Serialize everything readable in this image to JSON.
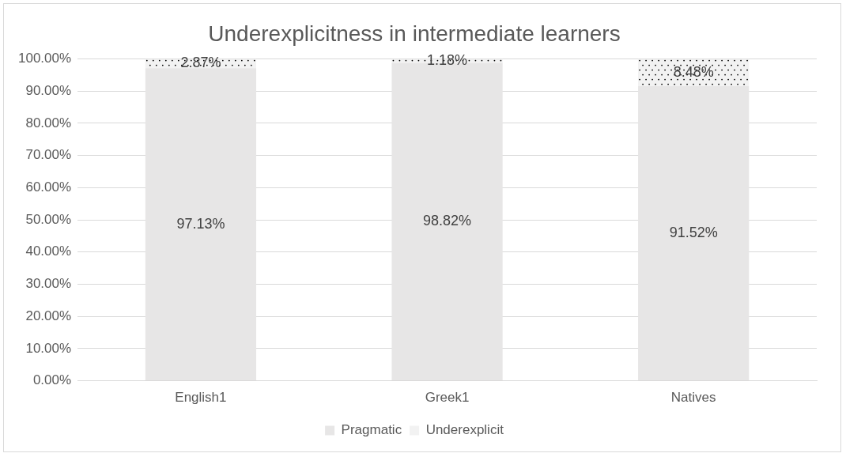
{
  "chart_data": {
    "type": "bar",
    "title": "Underexplicitness in intermediate learners",
    "categories": [
      "English1",
      "Greek1",
      "Natives"
    ],
    "series": [
      {
        "name": "Pragmatic",
        "color": "#e7e6e6",
        "values": [
          97.13,
          98.82,
          91.52
        ],
        "value_labels": [
          "97.13%",
          "98.82%",
          "91.52%"
        ]
      },
      {
        "name": "Underexplicit",
        "color": "#f2f2f2",
        "values": [
          2.87,
          1.18,
          8.48
        ],
        "value_labels": [
          "2.87%",
          "1.18%",
          "8.48%"
        ]
      }
    ],
    "stacked": true,
    "ylim": [
      0,
      100
    ],
    "yticks": [
      {
        "value": 0,
        "label": "0.00%"
      },
      {
        "value": 10,
        "label": "10.00%"
      },
      {
        "value": 20,
        "label": "20.00%"
      },
      {
        "value": 30,
        "label": "30.00%"
      },
      {
        "value": 40,
        "label": "40.00%"
      },
      {
        "value": 50,
        "label": "50.00%"
      },
      {
        "value": 60,
        "label": "60.00%"
      },
      {
        "value": 70,
        "label": "70.00%"
      },
      {
        "value": 80,
        "label": "80.00%"
      },
      {
        "value": 90,
        "label": "90.00%"
      },
      {
        "value": 100,
        "label": "100.00%"
      }
    ],
    "grid": "y",
    "legend": "bottom"
  }
}
